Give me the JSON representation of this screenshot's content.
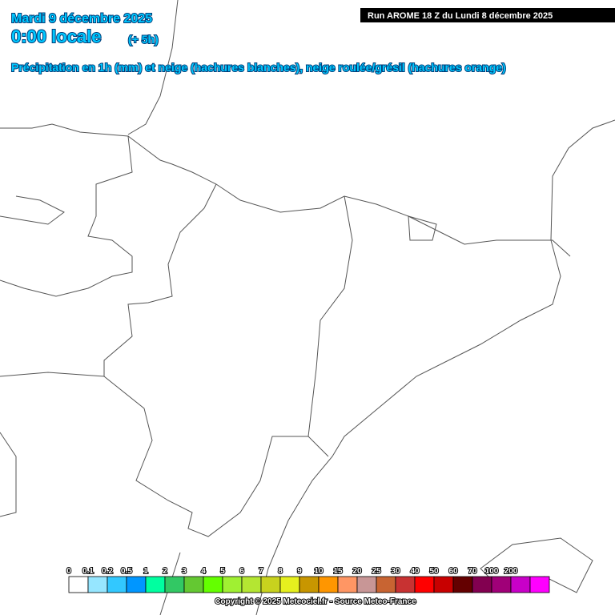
{
  "header": {
    "date": "Mardi 9 décembre 2025",
    "time": "0:00 locale",
    "offset": "(+ 5h)",
    "subtitle": "Précipitation en 1h (mm) et neige (hachures blanches), neige roulée/grésil (hachures orange)",
    "run": "Run AROME 18 Z du Lundi 8 décembre 2025"
  },
  "legend": {
    "labels": [
      "0",
      "0.1",
      "0.2",
      "0.5",
      "1",
      "2",
      "3",
      "4",
      "5",
      "6",
      "7",
      "8",
      "9",
      "10",
      "15",
      "20",
      "25",
      "30",
      "40",
      "50",
      "60",
      "70",
      "100",
      "200"
    ],
    "colors": [
      "#ffffff",
      "#96e6ff",
      "#32c8ff",
      "#0096ff",
      "#00ffa0",
      "#32c864",
      "#64c832",
      "#64ff00",
      "#a0f032",
      "#b4e632",
      "#c8d21e",
      "#e6f01e",
      "#c89600",
      "#ff9600",
      "#ff9664",
      "#c89696",
      "#c86432",
      "#c83232",
      "#ff0000",
      "#c80000",
      "#640000",
      "#820050",
      "#a00078",
      "#c800c8",
      "#ff00ff"
    ]
  },
  "footer": {
    "copyright": "Copyright © 2025 Meteociel.fr - Source Meteo-France"
  }
}
